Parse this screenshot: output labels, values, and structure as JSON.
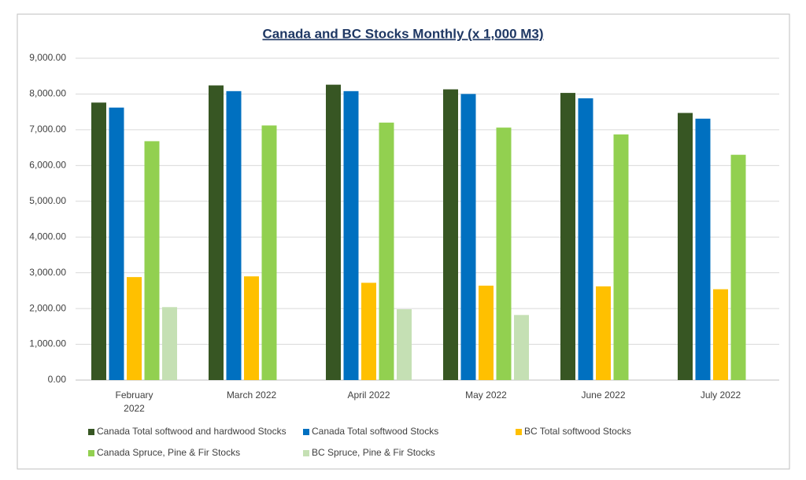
{
  "chart_data": {
    "type": "bar",
    "title": "Canada and BC Stocks  Monthly (x 1,000 M3)",
    "categories": [
      "February 2022",
      "March 2022",
      "April 2022",
      "May 2022",
      "June 2022",
      "July 2022"
    ],
    "series": [
      {
        "name": "Canada Total softwood and hardwood Stocks",
        "color": "#375623",
        "values": [
          7760,
          8240,
          8260,
          8130,
          8030,
          7470
        ]
      },
      {
        "name": "Canada Total softwood Stocks",
        "color": "#0070c0",
        "values": [
          7620,
          8080,
          8080,
          8000,
          7880,
          7310
        ]
      },
      {
        "name": "BC Total softwood Stocks",
        "color": "#ffc000",
        "values": [
          2880,
          2900,
          2720,
          2640,
          2620,
          2540
        ]
      },
      {
        "name": "Canada Spruce, Pine & Fir Stocks",
        "color": "#92d050",
        "values": [
          6680,
          7120,
          7200,
          7060,
          6870,
          6300
        ]
      },
      {
        "name": "BC Spruce, Pine & Fir Stocks",
        "color": "#c5e0b4",
        "values": [
          2040,
          null,
          1980,
          1820,
          null,
          null
        ]
      }
    ],
    "ylim": [
      0,
      9000
    ],
    "yticks": [
      {
        "value": 0,
        "label": "0.00"
      },
      {
        "value": 1000,
        "label": "1,000.00"
      },
      {
        "value": 2000,
        "label": "2,000.00"
      },
      {
        "value": 3000,
        "label": "3,000.00"
      },
      {
        "value": 4000,
        "label": "4,000.00"
      },
      {
        "value": 5000,
        "label": "5,000.00"
      },
      {
        "value": 6000,
        "label": "6,000.00"
      },
      {
        "value": 7000,
        "label": "7,000.00"
      },
      {
        "value": 8000,
        "label": "8,000.00"
      },
      {
        "value": 9000,
        "label": "9,000.00"
      }
    ],
    "grid": true,
    "legend": "bottom"
  }
}
